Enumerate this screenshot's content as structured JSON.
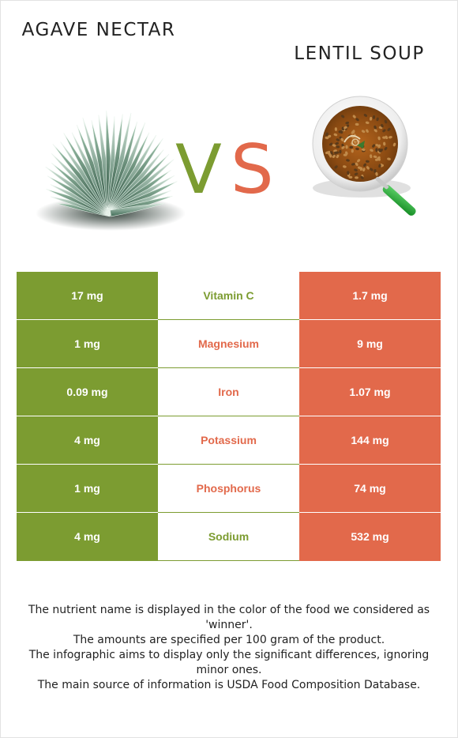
{
  "foods": {
    "left": {
      "name": "Agave nectar",
      "color": "#7c9c31"
    },
    "right": {
      "name": "Lentil soup",
      "color": "#e2694b"
    }
  },
  "vs": {
    "v": "V",
    "s": "S"
  },
  "rows": [
    {
      "nutrient": "Vitamin C",
      "left": "17 mg",
      "right": "1.7 mg",
      "winner": "left"
    },
    {
      "nutrient": "Magnesium",
      "left": "1 mg",
      "right": "9 mg",
      "winner": "right"
    },
    {
      "nutrient": "Iron",
      "left": "0.09 mg",
      "right": "1.07 mg",
      "winner": "right"
    },
    {
      "nutrient": "Potassium",
      "left": "4 mg",
      "right": "144 mg",
      "winner": "right"
    },
    {
      "nutrient": "Phosphorus",
      "left": "1 mg",
      "right": "74 mg",
      "winner": "right"
    },
    {
      "nutrient": "Sodium",
      "left": "4 mg",
      "right": "532 mg",
      "winner": "left"
    }
  ],
  "notes": [
    "The nutrient name is displayed in the color of the food we considered as 'winner'.",
    "The amounts are specified per 100 gram of the product.",
    "The infographic aims to display only the significant differences, ignoring minor ones.",
    "The main source of information is USDA Food Composition Database."
  ],
  "icons": {
    "left_image": "agave-plant-image",
    "right_image": "lentil-soup-bowl-image"
  }
}
